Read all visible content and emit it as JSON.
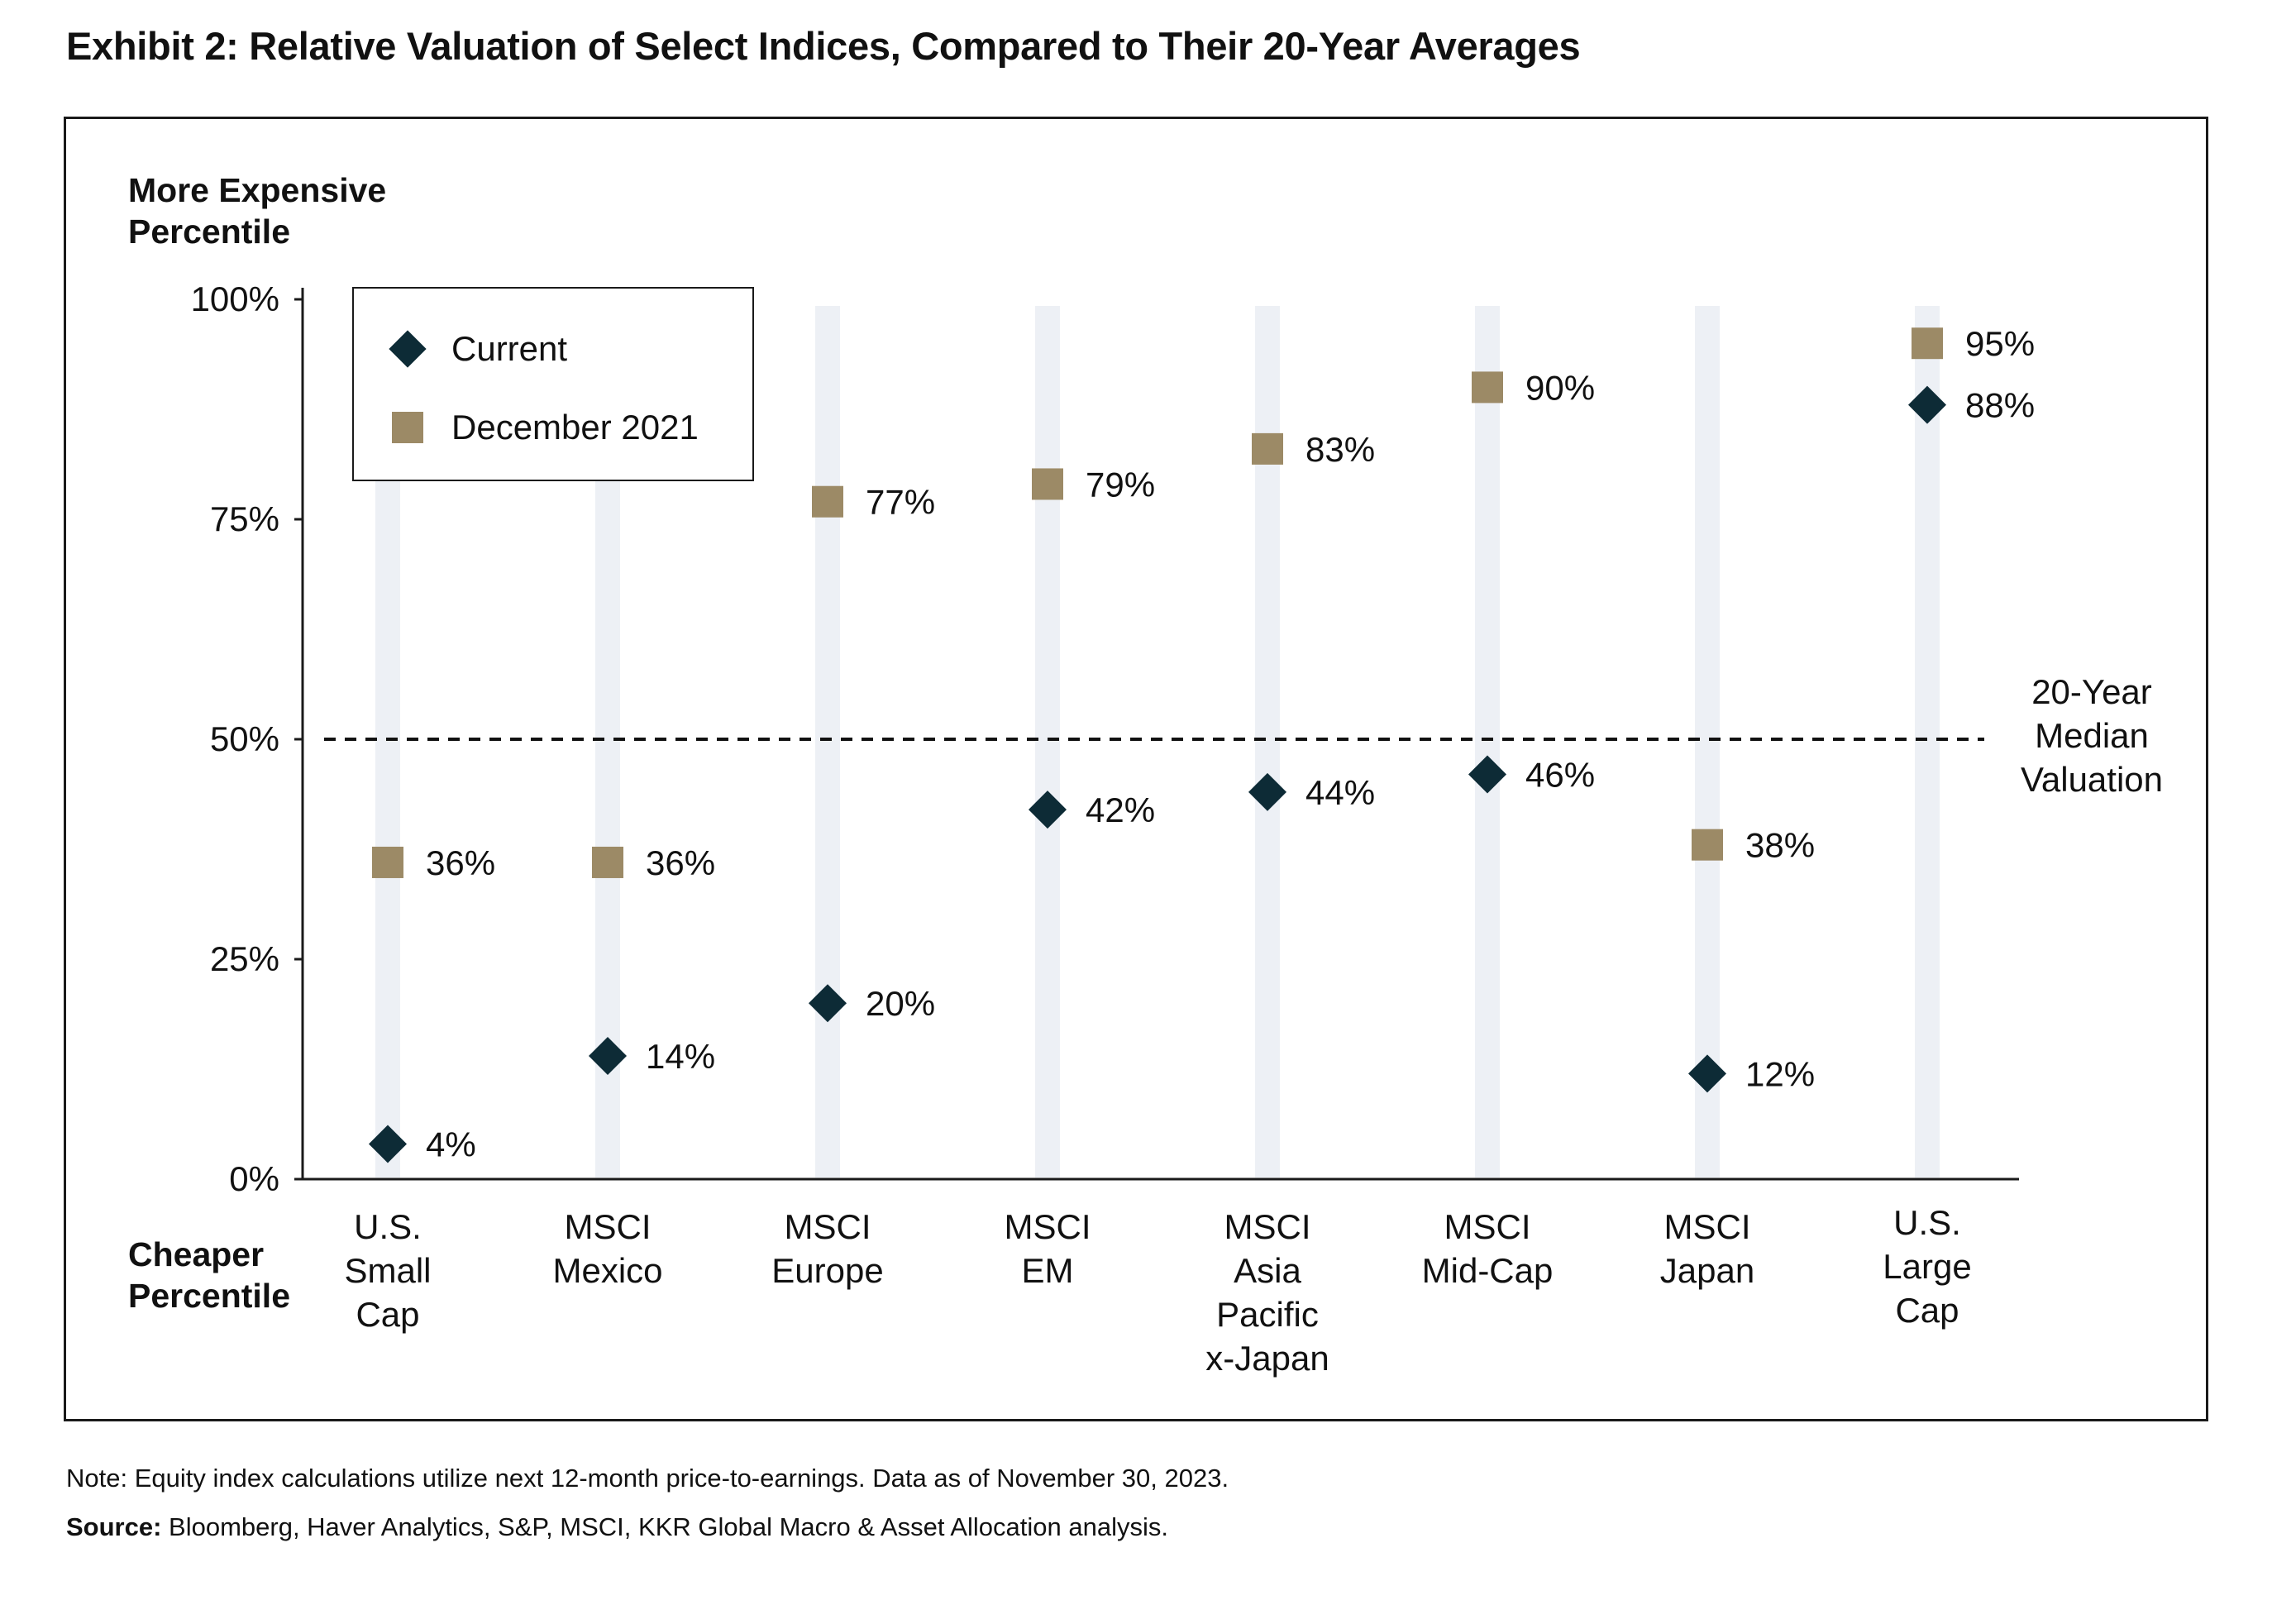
{
  "title": "Exhibit 2: Relative Valuation of Select Indices, Compared to Their 20-Year Averages",
  "y_top_label": "More Expensive Percentile",
  "y_top_label_lines": [
    "More Expensive",
    "Percentile"
  ],
  "y_bottom_label": "Cheaper Percentile",
  "y_bottom_label_lines": [
    "Cheaper",
    "Percentile"
  ],
  "legend": {
    "current": "Current",
    "dec2021": "December 2021"
  },
  "median_label": "20-Year Median Valuation",
  "median_label_lines": [
    "20-Year",
    "Median",
    "Valuation"
  ],
  "note": "Note: Equity index calculations utilize next 12-month price-to-earnings. Data as of November 30, 2023.",
  "source_label": "Source:",
  "source_text": " Bloomberg, Haver Analytics, S&P, MSCI, KKR Global Macro & Asset Allocation analysis.",
  "colors": {
    "current": "#0d2b36",
    "dec2021": "#9c8a66",
    "band": "#edf0f5",
    "axis": "#1a1a1a"
  },
  "chart_data": {
    "type": "scatter",
    "categories": [
      "U.S. Small Cap",
      "MSCI Mexico",
      "MSCI Europe",
      "MSCI EM",
      "MSCI Asia Pacific x-Japan",
      "MSCI Mid-Cap",
      "MSCI Japan",
      "U.S. Large Cap"
    ],
    "category_lines": [
      [
        "U.S.",
        "Small",
        "Cap"
      ],
      [
        "MSCI",
        "Mexico"
      ],
      [
        "MSCI",
        "Europe"
      ],
      [
        "MSCI",
        "EM"
      ],
      [
        "MSCI",
        "Asia",
        "Pacific",
        "x-Japan"
      ],
      [
        "MSCI",
        "Mid-Cap"
      ],
      [
        "MSCI",
        "Japan"
      ],
      [
        "U.S.",
        "Large",
        "Cap"
      ]
    ],
    "series": [
      {
        "name": "Current",
        "marker": "diamond",
        "values": [
          4,
          14,
          20,
          42,
          44,
          46,
          12,
          88
        ],
        "labels": [
          "4%",
          "14%",
          "20%",
          "42%",
          "44%",
          "46%",
          "12%",
          "88%"
        ]
      },
      {
        "name": "December 2021",
        "marker": "square",
        "values": [
          36,
          36,
          77,
          79,
          83,
          90,
          38,
          95
        ],
        "labels": [
          "36%",
          "36%",
          "77%",
          "79%",
          "83%",
          "90%",
          "38%",
          "95%"
        ]
      }
    ],
    "ylim": [
      0,
      100
    ],
    "yticks": [
      0,
      25,
      50,
      75,
      100
    ],
    "ytick_labels": [
      "0%",
      "25%",
      "50%",
      "75%",
      "100%"
    ],
    "reference_line": {
      "value": 50,
      "style": "dashed",
      "label": "20-Year Median Valuation"
    },
    "legend_position": "top-left",
    "grid": false
  }
}
